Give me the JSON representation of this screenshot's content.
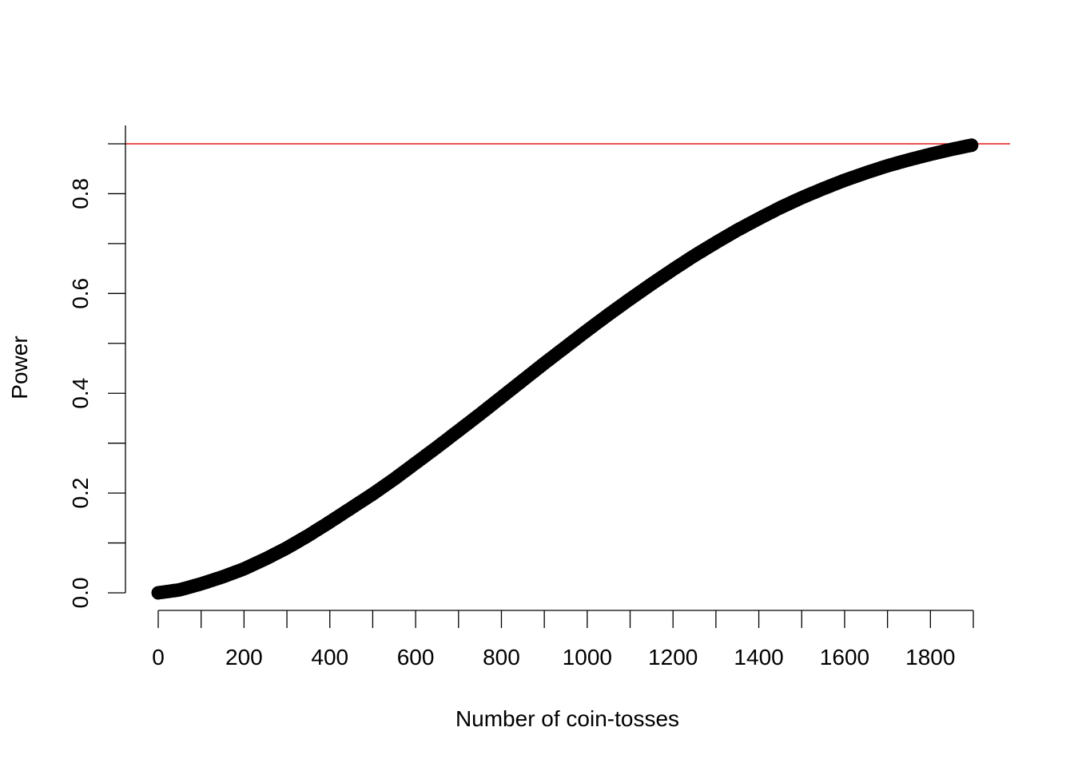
{
  "chart_data": {
    "type": "scatter",
    "title": "",
    "xlabel": "Number of coin-tosses",
    "ylabel": "Power",
    "xlim": [
      0,
      1900
    ],
    "ylim": [
      0,
      0.9
    ],
    "x_ticks": [
      0,
      100,
      200,
      300,
      400,
      500,
      600,
      700,
      800,
      900,
      1000,
      1100,
      1200,
      1300,
      1400,
      1500,
      1600,
      1700,
      1800,
      1900
    ],
    "x_tick_labels": [
      "0",
      "200",
      "400",
      "600",
      "800",
      "1000",
      "1200",
      "1400",
      "1600",
      "1800"
    ],
    "y_ticks": [
      0,
      0.1,
      0.2,
      0.3,
      0.4,
      0.5,
      0.6,
      0.7,
      0.8,
      0.9
    ],
    "y_tick_labels": [
      "0.0",
      "0.2",
      "0.4",
      "0.6",
      "0.8"
    ],
    "reference_line": {
      "y": 0.9,
      "color": "#e31a1c"
    },
    "point_color": "#000000",
    "x": [
      0,
      50,
      100,
      150,
      200,
      250,
      300,
      350,
      400,
      450,
      500,
      550,
      600,
      650,
      700,
      750,
      800,
      850,
      900,
      950,
      1000,
      1050,
      1100,
      1150,
      1200,
      1250,
      1300,
      1350,
      1400,
      1450,
      1500,
      1550,
      1600,
      1650,
      1700,
      1750,
      1800,
      1850,
      1900
    ],
    "y": [
      0.0,
      0.006,
      0.018,
      0.032,
      0.048,
      0.068,
      0.09,
      0.115,
      0.142,
      0.17,
      0.198,
      0.228,
      0.26,
      0.292,
      0.325,
      0.358,
      0.392,
      0.426,
      0.46,
      0.493,
      0.526,
      0.558,
      0.589,
      0.619,
      0.648,
      0.676,
      0.702,
      0.727,
      0.75,
      0.772,
      0.792,
      0.81,
      0.827,
      0.842,
      0.856,
      0.868,
      0.879,
      0.889,
      0.898
    ]
  }
}
